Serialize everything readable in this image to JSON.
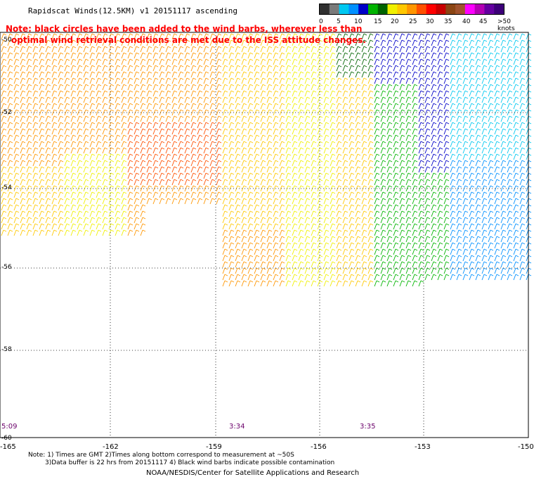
{
  "title": "Rapidscat Winds(12.5KM) v1 20151117 ascending",
  "note_lines": [
    "Note: black circles have been added to the wind barbs, wherever less than",
    "optimal wind retrieval conditions are met due to the ISS attitude changes."
  ],
  "colorbar": {
    "labels": [
      "0",
      "5",
      "10",
      "15",
      "20",
      "25",
      "30",
      "35",
      "40",
      "45",
      ">50 knots"
    ],
    "colors": [
      "#303030",
      "#7a7a7a",
      "#00c8f0",
      "#0090ff",
      "#0000c8",
      "#00b400",
      "#006400",
      "#f0f000",
      "#ffc800",
      "#ff9600",
      "#ff5000",
      "#ff0000",
      "#c80000",
      "#8b4513",
      "#a0522d",
      "#ff00ff",
      "#b400b4",
      "#6400a0",
      "#3c0078"
    ]
  },
  "lat_labels": [
    "-50",
    "-52",
    "-54",
    "-56",
    "-58",
    "-60"
  ],
  "lon_labels": [
    "-165",
    "-162",
    "-159",
    "-156",
    "-153",
    "-150"
  ],
  "time_labels": [
    "5:09",
    "3:34",
    "3:35"
  ],
  "bottom_notes": [
    "Note: 1) Times are GMT 2)Times along bottom correspond to measurement at ~50S",
    "3)Data buffer is 22 hrs from 20151117 4) Black wind barbs indicate possible contamination"
  ],
  "credit": "NOAA/NESDIS/Center for Satellite Applications and Research"
}
